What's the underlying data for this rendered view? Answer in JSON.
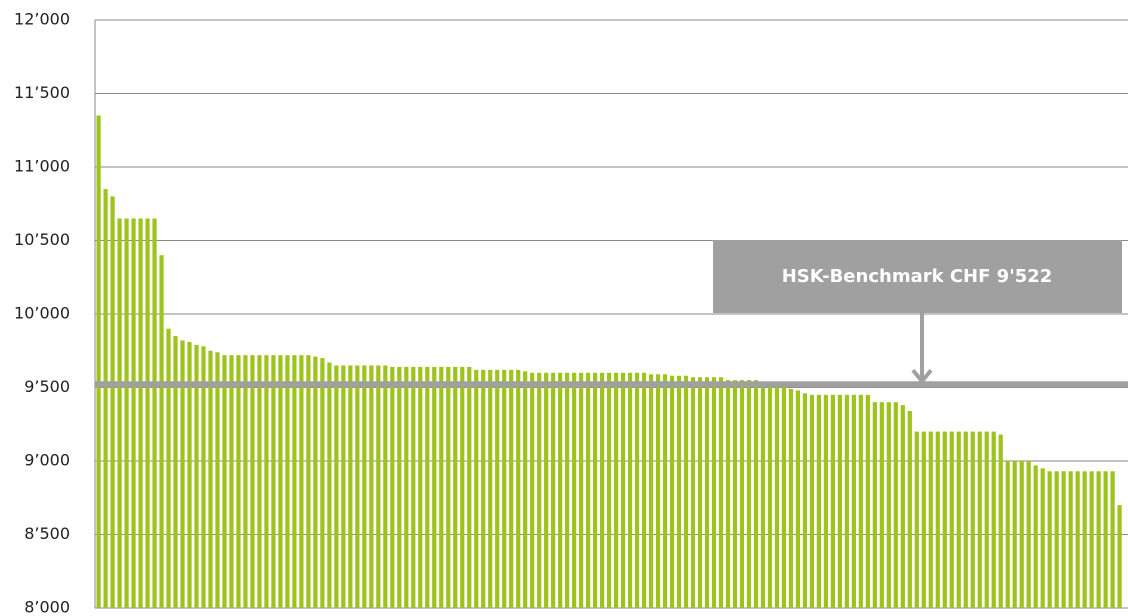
{
  "chart_data": {
    "type": "bar",
    "values": [
      11350,
      10850,
      10800,
      10650,
      10650,
      10650,
      10650,
      10650,
      10650,
      10400,
      9900,
      9850,
      9820,
      9810,
      9790,
      9780,
      9750,
      9740,
      9720,
      9720,
      9720,
      9720,
      9720,
      9720,
      9720,
      9720,
      9720,
      9720,
      9720,
      9720,
      9720,
      9710,
      9700,
      9670,
      9650,
      9650,
      9650,
      9650,
      9650,
      9650,
      9650,
      9650,
      9640,
      9640,
      9640,
      9640,
      9640,
      9640,
      9640,
      9640,
      9640,
      9640,
      9640,
      9640,
      9620,
      9620,
      9620,
      9620,
      9620,
      9620,
      9620,
      9610,
      9600,
      9600,
      9600,
      9600,
      9600,
      9600,
      9600,
      9600,
      9600,
      9600,
      9600,
      9600,
      9600,
      9600,
      9600,
      9600,
      9600,
      9590,
      9590,
      9590,
      9580,
      9580,
      9580,
      9570,
      9570,
      9570,
      9570,
      9570,
      9550,
      9550,
      9550,
      9550,
      9550,
      9540,
      9540,
      9540,
      9540,
      9490,
      9480,
      9460,
      9450,
      9450,
      9450,
      9450,
      9450,
      9450,
      9450,
      9450,
      9450,
      9400,
      9400,
      9400,
      9400,
      9380,
      9340,
      9200,
      9200,
      9200,
      9200,
      9200,
      9200,
      9200,
      9200,
      9200,
      9200,
      9200,
      9200,
      9180,
      9000,
      9000,
      9000,
      9000,
      8970,
      8950,
      8930,
      8930,
      8930,
      8930,
      8930,
      8930,
      8930,
      8930,
      8930,
      8930,
      8700
    ],
    "color": "#9dc31c",
    "ylim": [
      8000,
      12000
    ],
    "yticks": [
      {
        "value": 8000,
        "label": "8’000"
      },
      {
        "value": 8500,
        "label": "8’500"
      },
      {
        "value": 9000,
        "label": "9’000"
      },
      {
        "value": 9500,
        "label": "9’500"
      },
      {
        "value": 10000,
        "label": "10’000"
      },
      {
        "value": 10500,
        "label": "10’500"
      },
      {
        "value": 11000,
        "label": "11’000"
      },
      {
        "value": 11500,
        "label": "11’500"
      },
      {
        "value": 12000,
        "label": "12’000"
      }
    ],
    "grid": true,
    "benchmark": {
      "value": 9522,
      "label": "HSK-Benchmark CHF 9'522",
      "color": "#a0a0a0"
    }
  }
}
